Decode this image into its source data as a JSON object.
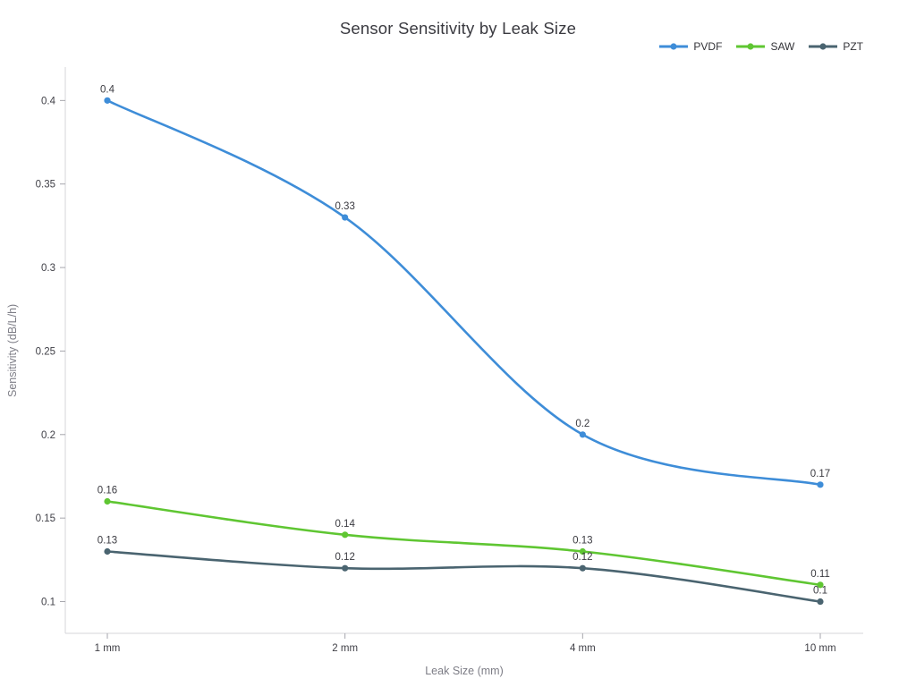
{
  "chart_data": {
    "type": "line",
    "title": "Sensor Sensitivity by Leak Size",
    "xlabel": "Leak Size (mm)",
    "ylabel": "Sensitivity (dB/L/h)",
    "categories": [
      "1 mm",
      "2 mm",
      "4 mm",
      "10 mm"
    ],
    "series": [
      {
        "name": "PVDF",
        "color": "#3e8dd8",
        "values": [
          0.4,
          0.33,
          0.2,
          0.17
        ],
        "point_labels": [
          "0.4",
          "0.33",
          "0.2",
          "0.17"
        ]
      },
      {
        "name": "SAW",
        "color": "#5fc632",
        "values": [
          0.16,
          0.14,
          0.13,
          0.11
        ],
        "point_labels": [
          "0.16",
          "0.14",
          "0.13",
          "0.11"
        ]
      },
      {
        "name": "PZT",
        "color": "#4a6470",
        "values": [
          0.13,
          0.12,
          0.12,
          0.1
        ],
        "point_labels": [
          "0.13",
          "0.12",
          "0.12",
          "0.1"
        ]
      }
    ],
    "yticks": [
      "0.1",
      "0.15",
      "0.2",
      "0.25",
      "0.3",
      "0.35",
      "0.4"
    ],
    "ylim": [
      0.081,
      0.42
    ],
    "smooth": true,
    "grid": false,
    "legend_position": "top-right",
    "colors": {
      "axis_line": "#d6d6da",
      "tick_mark": "#a6a6ac",
      "tick_label": "#3f3f46",
      "axis_title": "#7d7d86",
      "title": "#3a3a40",
      "point_label": "#3a3a40"
    }
  }
}
